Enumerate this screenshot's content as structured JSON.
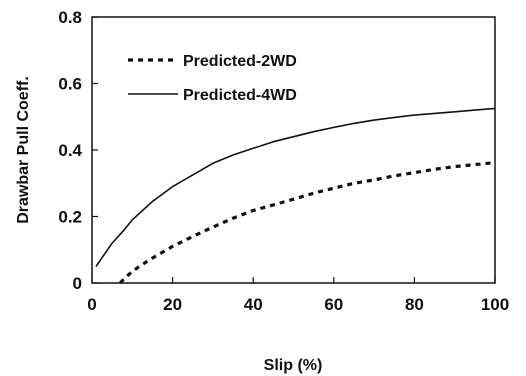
{
  "chart_data": {
    "type": "line",
    "xlabel": "Slip (%)",
    "ylabel": "Drawbar Pull Coeff.",
    "xlim": [
      0,
      100
    ],
    "ylim": [
      0,
      0.8
    ],
    "x_ticks": [
      0,
      20,
      40,
      60,
      80,
      100
    ],
    "y_ticks": [
      0,
      0.2,
      0.4,
      0.6,
      0.8
    ],
    "x_tick_labels": [
      "0",
      "20",
      "40",
      "60",
      "80",
      "100"
    ],
    "y_tick_labels": [
      "0",
      "0.2",
      "0.4",
      "0.6",
      "0.8"
    ],
    "grid": false,
    "legend_position": "top-left",
    "series": [
      {
        "name": "Predicted-2WD",
        "style": "dotted",
        "color": "#111111",
        "x": [
          7,
          8,
          10,
          12,
          15,
          20,
          25,
          30,
          35,
          40,
          45,
          50,
          55,
          60,
          65,
          70,
          75,
          80,
          85,
          90,
          95,
          100
        ],
        "y": [
          0.0,
          0.013,
          0.035,
          0.052,
          0.075,
          0.11,
          0.14,
          0.168,
          0.195,
          0.218,
          0.235,
          0.252,
          0.27,
          0.285,
          0.3,
          0.31,
          0.322,
          0.332,
          0.342,
          0.35,
          0.356,
          0.362
        ]
      },
      {
        "name": "Predicted-4WD",
        "style": "solid",
        "color": "#111111",
        "x": [
          1,
          3,
          5,
          8,
          10,
          15,
          20,
          25,
          30,
          35,
          40,
          45,
          50,
          55,
          60,
          65,
          70,
          75,
          80,
          85,
          90,
          95,
          100
        ],
        "y": [
          0.05,
          0.085,
          0.12,
          0.16,
          0.19,
          0.245,
          0.29,
          0.325,
          0.36,
          0.385,
          0.405,
          0.425,
          0.44,
          0.455,
          0.468,
          0.48,
          0.49,
          0.498,
          0.505,
          0.51,
          0.515,
          0.52,
          0.525
        ]
      }
    ]
  }
}
